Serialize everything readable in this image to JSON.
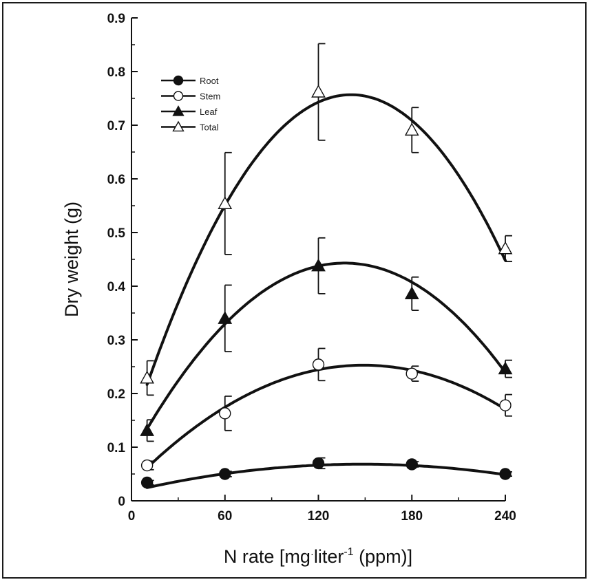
{
  "chart_data": {
    "type": "line",
    "xlabel_parts": {
      "main": "N rate [mg",
      "dot": "·",
      "unit": "liter",
      "exp": "-1",
      "tail": " (ppm)]"
    },
    "ylabel": "Dry weight (g)",
    "xlim": [
      0,
      240
    ],
    "ylim": [
      0,
      0.9
    ],
    "x_ticks": [
      0,
      60,
      120,
      180,
      240
    ],
    "y_ticks": [
      0,
      0.1,
      0.2,
      0.3,
      0.4,
      0.5,
      0.6,
      0.7,
      0.8,
      0.9
    ],
    "y_tick_labels": [
      "0",
      "0.1",
      "0.2",
      "0.3",
      "0.4",
      "0.5",
      "0.6",
      "0.7",
      "0.8",
      "0.9"
    ],
    "legend_position": "top-left",
    "x": [
      10,
      60,
      120,
      180,
      240
    ],
    "series": [
      {
        "name": "Root",
        "marker": "filled-circle",
        "values": [
          0.034,
          0.05,
          0.07,
          0.068,
          0.05
        ],
        "errors": [
          0.004,
          0.005,
          0.01,
          0.005,
          0.004
        ],
        "fit": [
          0.018,
          0.00068,
          -2.3e-06
        ]
      },
      {
        "name": "Stem",
        "marker": "open-circle",
        "values": [
          0.066,
          0.163,
          0.254,
          0.237,
          0.178
        ],
        "errors": [
          0.008,
          0.032,
          0.03,
          0.014,
          0.02
        ],
        "fit": [
          0.033,
          0.00295,
          -9.9e-06
        ]
      },
      {
        "name": "Leaf",
        "marker": "filled-triangle",
        "values": [
          0.131,
          0.34,
          0.438,
          0.386,
          0.246
        ],
        "errors": [
          0.02,
          0.062,
          0.052,
          0.031,
          0.016
        ],
        "fit": [
          0.0836,
          0.00525,
          -1.917e-05
        ]
      },
      {
        "name": "Total",
        "marker": "open-triangle",
        "values": [
          0.229,
          0.554,
          0.762,
          0.691,
          0.47
        ],
        "errors": [
          0.032,
          0.095,
          0.09,
          0.042,
          0.024
        ],
        "fit": [
          0.131,
          0.00888,
          -3.15e-05
        ]
      }
    ]
  }
}
